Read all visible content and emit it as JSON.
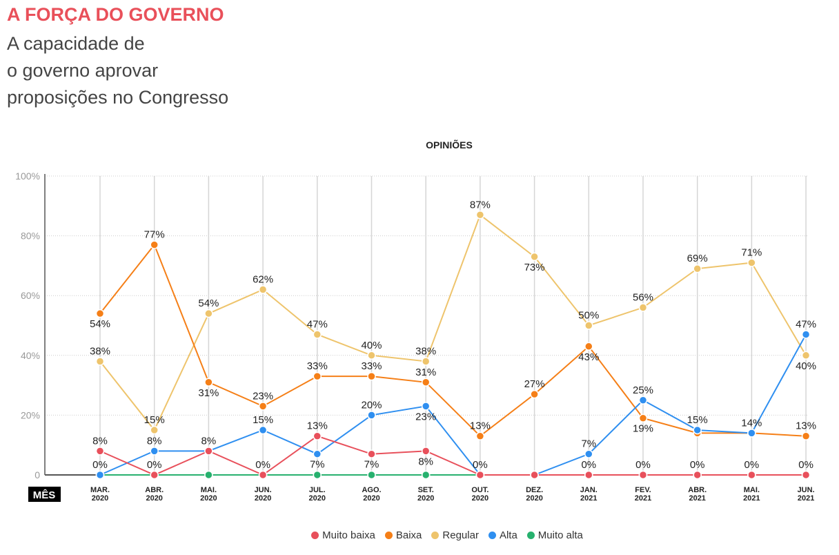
{
  "header": {
    "title": "A FORÇA DO GOVERNO",
    "subtitle_lines": [
      "A capacidade de",
      "o governo aprovar",
      "proposições no Congresso"
    ]
  },
  "chart_data": {
    "type": "line",
    "title": "OPINIÕES",
    "xlabel": "MÊS",
    "ylabel": "",
    "ylim": [
      0,
      100
    ],
    "yticks": [
      "0",
      "20%",
      "40%",
      "60%",
      "80%",
      "100%"
    ],
    "categories": [
      [
        "MAR.",
        "2020"
      ],
      [
        "ABR.",
        "2020"
      ],
      [
        "MAI.",
        "2020"
      ],
      [
        "JUN.",
        "2020"
      ],
      [
        "JUL.",
        "2020"
      ],
      [
        "AGO.",
        "2020"
      ],
      [
        "SET.",
        "2020"
      ],
      [
        "OUT.",
        "2020"
      ],
      [
        "DEZ.",
        "2020"
      ],
      [
        "JAN.",
        "2021"
      ],
      [
        "FEV.",
        "2021"
      ],
      [
        "ABR.",
        "2021"
      ],
      [
        "MAI.",
        "2021"
      ],
      [
        "JUN.",
        "2021"
      ]
    ],
    "grid": true,
    "legend_position": "bottom",
    "series": [
      {
        "name": "Muito baixa",
        "color": "#e8505b",
        "values": [
          8,
          0,
          8,
          0,
          13,
          7,
          8,
          0,
          0,
          0,
          0,
          0,
          0,
          0
        ]
      },
      {
        "name": "Baixa",
        "color": "#f57f17",
        "values": [
          54,
          77,
          31,
          23,
          33,
          33,
          31,
          13,
          27,
          43,
          19,
          14,
          14,
          13
        ]
      },
      {
        "name": "Regular",
        "color": "#eec46c",
        "values": [
          38,
          15,
          54,
          62,
          47,
          40,
          38,
          87,
          73,
          50,
          56,
          69,
          71,
          40
        ]
      },
      {
        "name": "Alta",
        "color": "#2f8ff0",
        "values": [
          0,
          8,
          8,
          15,
          7,
          20,
          23,
          0,
          0,
          7,
          25,
          15,
          14,
          47
        ]
      },
      {
        "name": "Muito alta",
        "color": "#27b16e",
        "values": [
          0,
          0,
          0,
          0,
          0,
          0,
          0,
          0,
          0,
          0,
          0,
          0,
          0,
          0
        ]
      }
    ]
  }
}
